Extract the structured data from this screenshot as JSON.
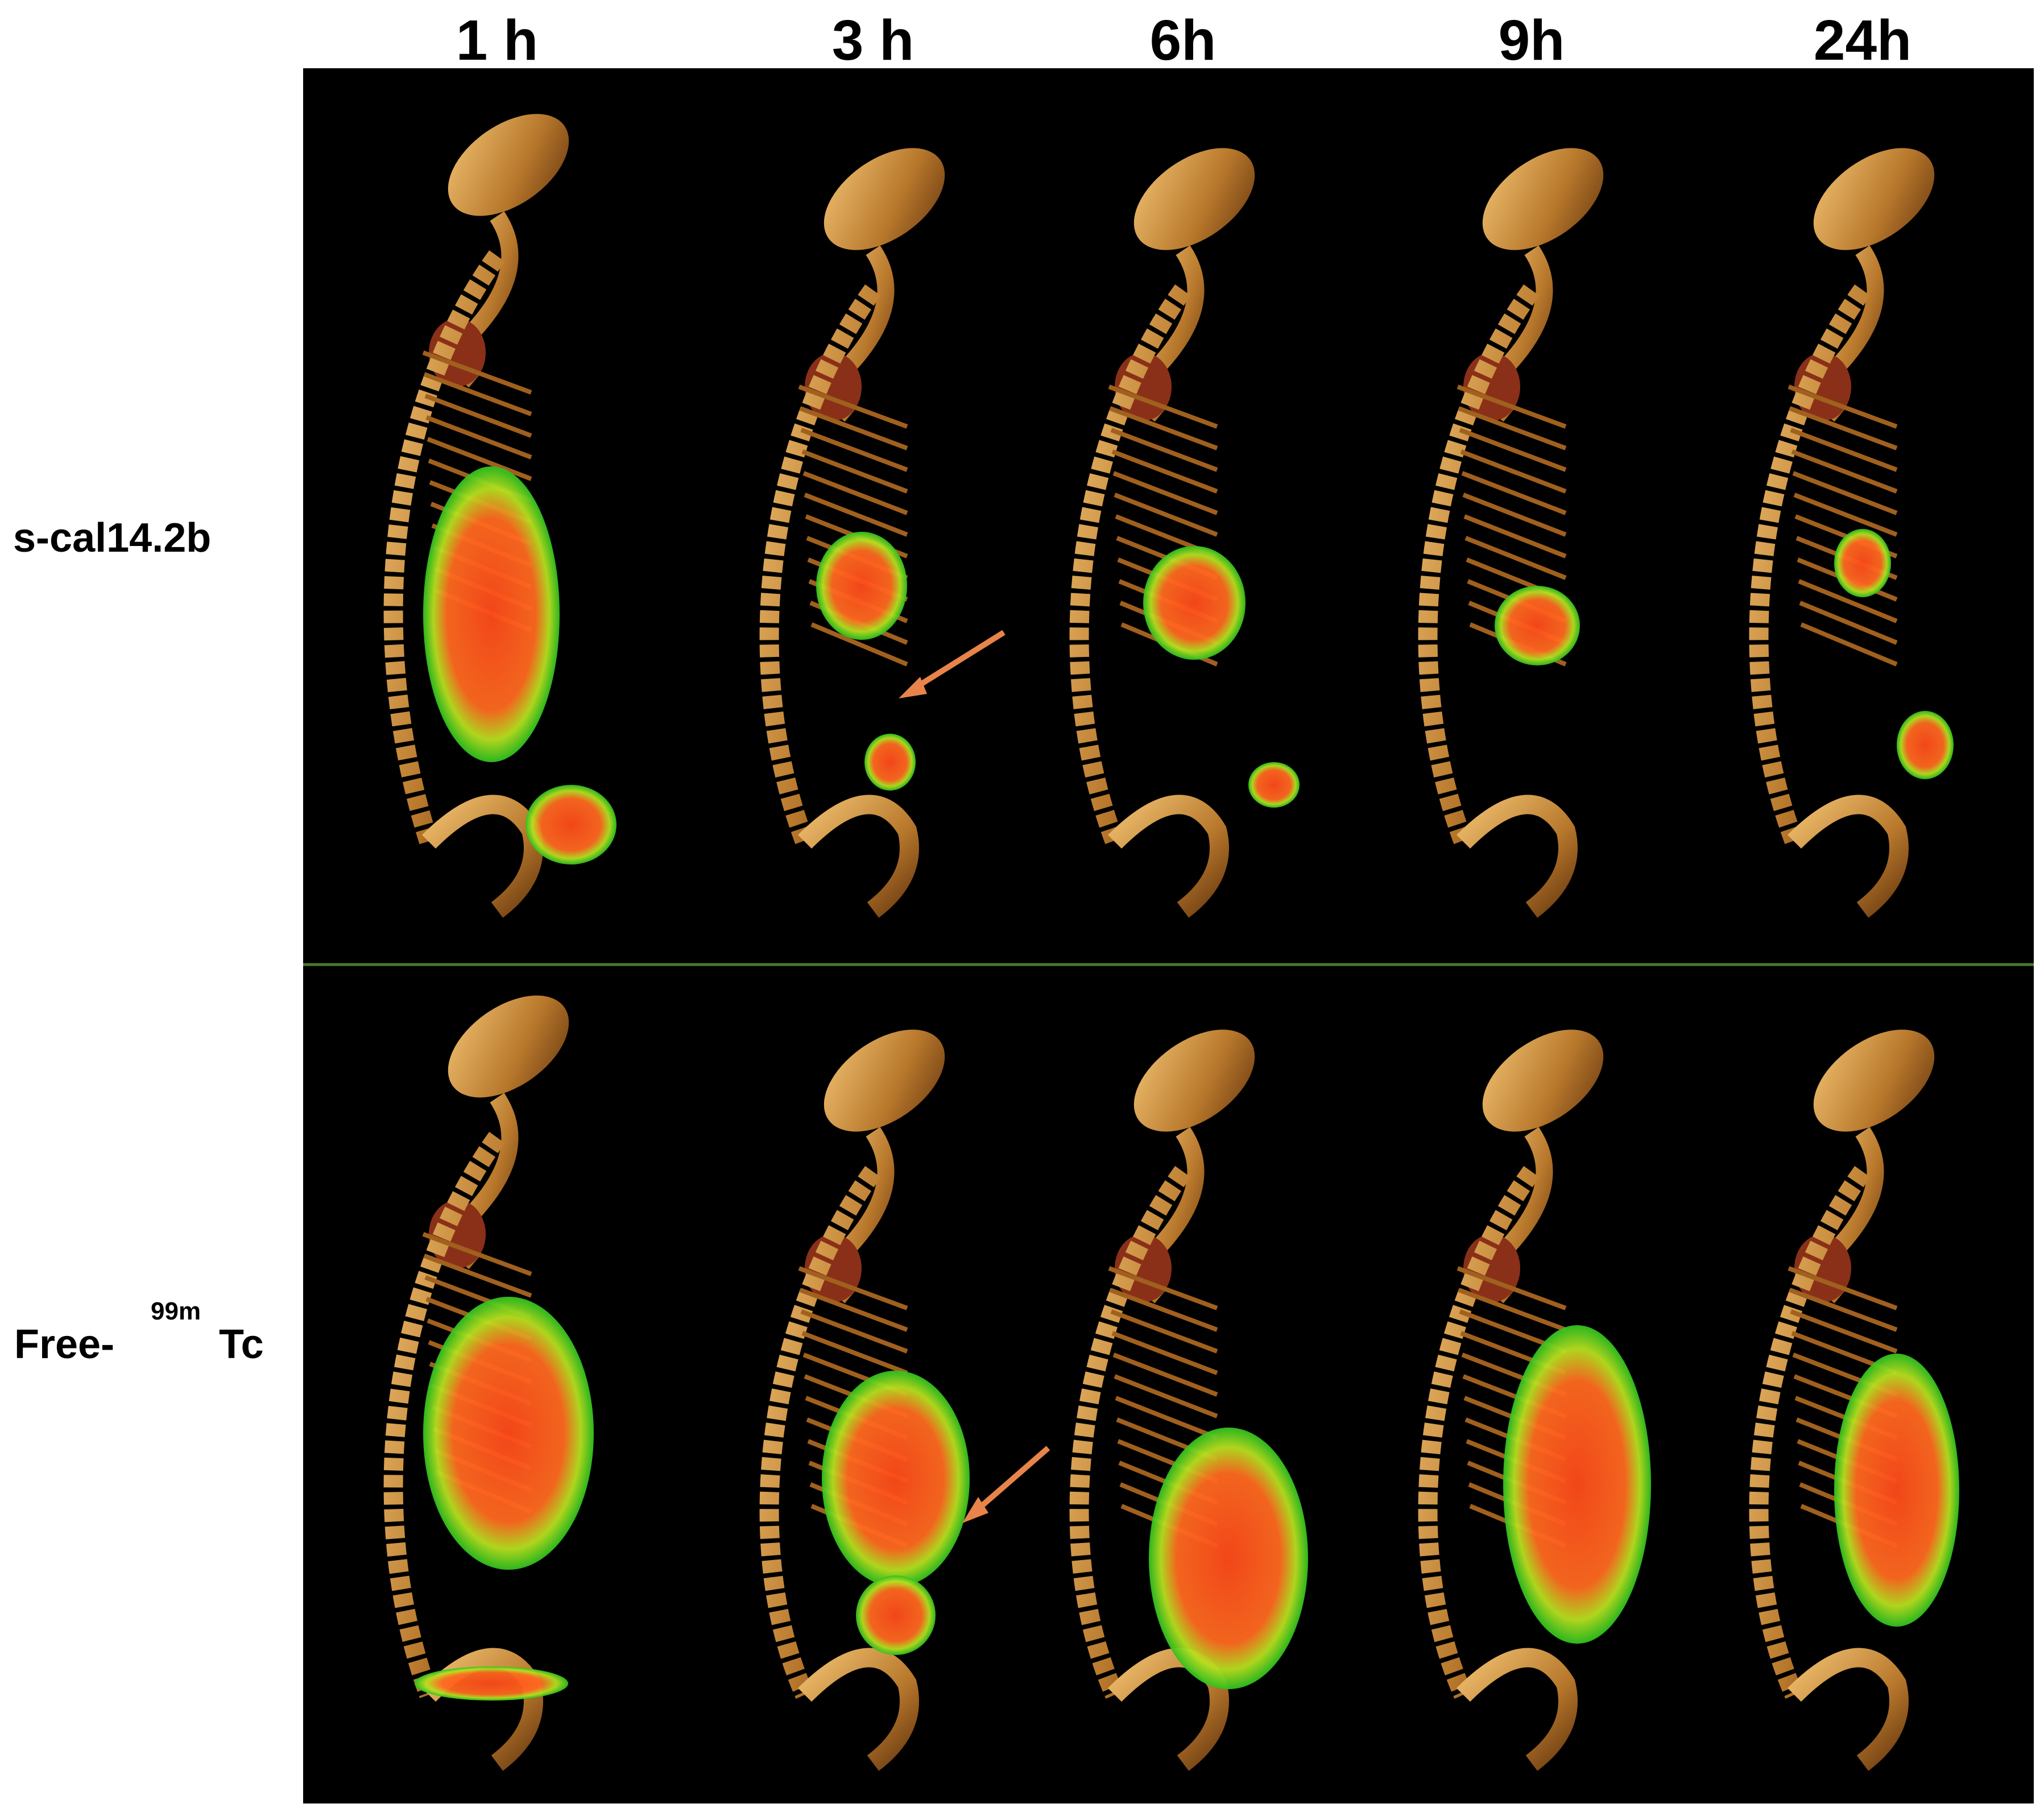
{
  "header": {
    "columns": [
      "1 h",
      "3 h",
      "6h",
      "9h",
      "24h"
    ]
  },
  "rows": [
    {
      "label": "s-cal14.2b"
    },
    {
      "label_prefix": "Free-",
      "label_sup": "99m",
      "label_suffix": "Tc"
    }
  ]
}
